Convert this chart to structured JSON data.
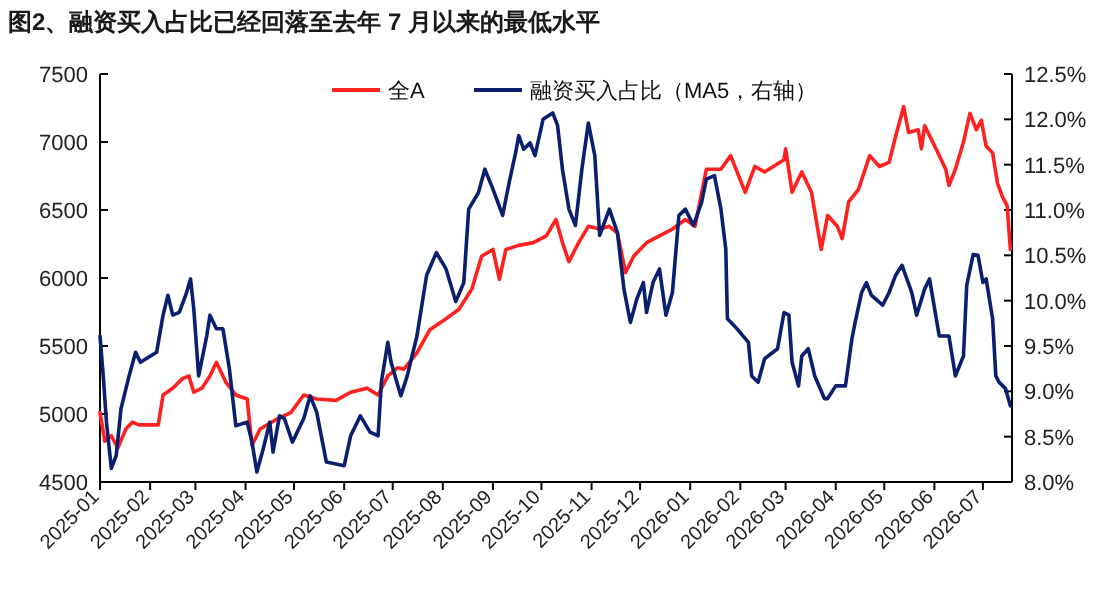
{
  "chart_data": {
    "type": "line",
    "title": "图2、融资买入占比已经回落至去年 7 月以来的最低水平",
    "xlim": [
      "2025-01-01",
      "2026-07-19"
    ],
    "xticks": [
      "2025-01",
      "2025-02",
      "2025-03",
      "2025-04",
      "2025-05",
      "2025-06",
      "2025-07",
      "2025-08",
      "2025-09",
      "2025-10",
      "2025-11",
      "2025-12",
      "2026-01",
      "2026-02",
      "2026-03",
      "2026-04",
      "2026-05",
      "2026-06",
      "2026-07"
    ],
    "ylim": [
      4500,
      7500
    ],
    "yticks": [
      4500,
      5000,
      5500,
      6000,
      6500,
      7000,
      7500
    ],
    "y2lim": [
      8.0,
      12.5
    ],
    "y2ticks": [
      {
        "value": 8.0,
        "label": "8.0%"
      },
      {
        "value": 8.5,
        "label": "8.5%"
      },
      {
        "value": 9.0,
        "label": "9.0%"
      },
      {
        "value": 9.5,
        "label": "9.5%"
      },
      {
        "value": 10.0,
        "label": "10.0%"
      },
      {
        "value": 10.5,
        "label": "10.5%"
      },
      {
        "value": 11.0,
        "label": "11.0%"
      },
      {
        "value": 11.5,
        "label": "11.5%"
      },
      {
        "value": 12.0,
        "label": "12.0%"
      },
      {
        "value": 12.5,
        "label": "12.5%"
      }
    ],
    "grid": false,
    "legend": "top",
    "marker": "none",
    "line_style": "solid",
    "series": [
      {
        "name": "全A",
        "color": "#ff2020",
        "x": [
          "2025-01-01",
          "2025-01-04",
          "2025-01-08",
          "2025-01-12",
          "2025-01-17",
          "2025-01-21",
          "2025-01-25",
          "2025-02-01",
          "2025-02-06",
          "2025-02-09",
          "2025-02-15",
          "2025-02-21",
          "2025-02-25",
          "2025-02-28",
          "2025-03-05",
          "2025-03-10",
          "2025-03-14",
          "2025-03-20",
          "2025-03-26",
          "2025-04-02",
          "2025-04-05",
          "2025-04-10",
          "2025-04-20",
          "2025-04-29",
          "2025-05-07",
          "2025-05-15",
          "2025-05-27",
          "2025-06-05",
          "2025-06-15",
          "2025-06-22",
          "2025-06-28",
          "2025-07-04",
          "2025-07-08",
          "2025-07-16",
          "2025-07-24",
          "2025-08-03",
          "2025-08-11",
          "2025-08-19",
          "2025-08-25",
          "2025-09-01",
          "2025-09-05",
          "2025-09-09",
          "2025-09-17",
          "2025-09-26",
          "2025-10-04",
          "2025-10-10",
          "2025-10-14",
          "2025-10-18",
          "2025-10-24",
          "2025-10-30",
          "2025-11-06",
          "2025-11-12",
          "2025-11-17",
          "2025-11-22",
          "2025-11-27",
          "2025-12-05",
          "2025-12-13",
          "2025-12-21",
          "2025-12-29",
          "2026-01-04",
          "2026-01-11",
          "2026-01-20",
          "2026-01-26",
          "2026-02-04",
          "2026-02-10",
          "2026-02-16",
          "2026-02-28",
          "2026-03-01",
          "2026-03-05",
          "2026-03-11",
          "2026-03-17",
          "2026-03-23",
          "2026-03-27",
          "2026-04-02",
          "2026-04-05",
          "2026-04-09",
          "2026-04-15",
          "2026-04-22",
          "2026-04-28",
          "2026-05-04",
          "2026-05-08",
          "2026-05-13",
          "2026-05-16",
          "2026-05-22",
          "2026-05-24",
          "2026-05-26",
          "2026-06-02",
          "2026-06-08",
          "2026-06-10",
          "2026-06-14",
          "2026-06-19",
          "2026-06-23",
          "2026-06-27",
          "2026-06-30",
          "2026-07-03",
          "2026-07-07",
          "2026-07-10",
          "2026-07-13",
          "2026-07-16",
          "2026-07-18"
        ],
        "values": [
          5010,
          4800,
          4840,
          4750,
          4890,
          4940,
          4920,
          4920,
          4920,
          5140,
          5190,
          5260,
          5280,
          5160,
          5190,
          5280,
          5380,
          5230,
          5140,
          5110,
          4770,
          4890,
          4960,
          5010,
          5140,
          5110,
          5100,
          5160,
          5190,
          5140,
          5280,
          5340,
          5330,
          5450,
          5620,
          5700,
          5770,
          5920,
          6160,
          6210,
          5990,
          6210,
          6240,
          6260,
          6310,
          6430,
          6260,
          6120,
          6260,
          6380,
          6360,
          6380,
          6330,
          6040,
          6160,
          6260,
          6310,
          6360,
          6430,
          6380,
          6800,
          6800,
          6900,
          6630,
          6820,
          6780,
          6870,
          6950,
          6630,
          6780,
          6630,
          6210,
          6460,
          6380,
          6290,
          6560,
          6650,
          6900,
          6820,
          6850,
          7040,
          7260,
          7070,
          7090,
          6950,
          7120,
          6950,
          6800,
          6680,
          6800,
          7000,
          7210,
          7090,
          7160,
          6970,
          6920,
          6700,
          6600,
          6530,
          6210
        ]
      },
      {
        "name": "融资买入占比（MA5，右轴）",
        "color": "#0a1f6e",
        "axis": "y2",
        "x": [
          "2025-01-01",
          "2025-01-03",
          "2025-01-05",
          "2025-01-08",
          "2025-01-11",
          "2025-01-14",
          "2025-01-19",
          "2025-01-23",
          "2025-01-26",
          "2025-02-05",
          "2025-02-09",
          "2025-02-12",
          "2025-02-15",
          "2025-02-19",
          "2025-02-23",
          "2025-02-26",
          "2025-02-28",
          "2025-03-03",
          "2025-03-08",
          "2025-03-10",
          "2025-03-14",
          "2025-03-18",
          "2025-03-22",
          "2025-03-26",
          "2025-04-02",
          "2025-04-05",
          "2025-04-08",
          "2025-04-12",
          "2025-04-16",
          "2025-04-18",
          "2025-04-22",
          "2025-04-25",
          "2025-04-30",
          "2025-05-07",
          "2025-05-11",
          "2025-05-15",
          "2025-05-21",
          "2025-06-01",
          "2025-06-05",
          "2025-06-11",
          "2025-06-17",
          "2025-06-22",
          "2025-06-24",
          "2025-06-28",
          "2025-06-30",
          "2025-07-06",
          "2025-07-10",
          "2025-07-16",
          "2025-07-22",
          "2025-07-28",
          "2025-08-03",
          "2025-08-09",
          "2025-08-14",
          "2025-08-17",
          "2025-08-23",
          "2025-08-27",
          "2025-09-01",
          "2025-09-07",
          "2025-09-11",
          "2025-09-15",
          "2025-09-17",
          "2025-09-20",
          "2025-09-24",
          "2025-09-27",
          "2025-10-02",
          "2025-10-08",
          "2025-10-11",
          "2025-10-14",
          "2025-10-18",
          "2025-10-22",
          "2025-10-26",
          "2025-10-30",
          "2025-11-03",
          "2025-11-06",
          "2025-11-12",
          "2025-11-17",
          "2025-11-21",
          "2025-11-25",
          "2025-11-29",
          "2025-12-03",
          "2025-12-05",
          "2025-12-09",
          "2025-12-13",
          "2025-12-17",
          "2025-12-21",
          "2025-12-25",
          "2025-12-29",
          "2026-01-03",
          "2026-01-08",
          "2026-01-11",
          "2026-01-16",
          "2026-01-20",
          "2026-01-23",
          "2026-01-24",
          "2026-01-30",
          "2026-02-06",
          "2026-02-08",
          "2026-02-12",
          "2026-02-16",
          "2026-02-24",
          "2026-02-28",
          "2026-03-03",
          "2026-03-05",
          "2026-03-09",
          "2026-03-11",
          "2026-03-15",
          "2026-03-19",
          "2026-03-25",
          "2026-03-27",
          "2026-04-01",
          "2026-04-07",
          "2026-04-11",
          "2026-04-13",
          "2026-04-17",
          "2026-04-20",
          "2026-04-23",
          "2026-04-30",
          "2026-05-04",
          "2026-05-08",
          "2026-05-12",
          "2026-05-18",
          "2026-05-21",
          "2026-05-26",
          "2026-05-29",
          "2026-06-04",
          "2026-06-10",
          "2026-06-14",
          "2026-06-19",
          "2026-06-21",
          "2026-06-25",
          "2026-06-28",
          "2026-07-01",
          "2026-07-03",
          "2026-07-07",
          "2026-07-09",
          "2026-07-11",
          "2026-07-15",
          "2026-07-18"
        ],
        "values": [
          9.61,
          9.17,
          8.66,
          8.15,
          8.29,
          8.81,
          9.17,
          9.43,
          9.32,
          9.43,
          9.84,
          10.06,
          9.84,
          9.87,
          10.06,
          10.24,
          9.91,
          9.17,
          9.61,
          9.84,
          9.69,
          9.69,
          9.25,
          8.62,
          8.66,
          8.44,
          8.11,
          8.37,
          8.66,
          8.33,
          8.73,
          8.7,
          8.44,
          8.7,
          8.95,
          8.77,
          8.22,
          8.18,
          8.51,
          8.73,
          8.55,
          8.51,
          9.1,
          9.54,
          9.32,
          8.95,
          9.17,
          9.61,
          10.28,
          10.53,
          10.35,
          9.99,
          10.2,
          11.01,
          11.19,
          11.45,
          11.23,
          10.94,
          11.3,
          11.63,
          11.82,
          11.67,
          11.74,
          11.6,
          12.0,
          12.07,
          11.93,
          11.45,
          11.01,
          10.83,
          11.45,
          11.96,
          11.6,
          10.72,
          11.01,
          10.75,
          10.13,
          9.76,
          10.02,
          10.2,
          9.87,
          10.2,
          10.35,
          9.84,
          10.09,
          10.94,
          11.01,
          10.83,
          11.08,
          11.34,
          11.38,
          11.01,
          10.57,
          9.8,
          9.69,
          9.54,
          9.17,
          9.1,
          9.36,
          9.47,
          9.87,
          9.84,
          9.32,
          9.06,
          9.39,
          9.47,
          9.17,
          8.92,
          8.92,
          9.06,
          9.06,
          9.58,
          9.76,
          10.09,
          10.2,
          10.06,
          9.95,
          10.09,
          10.28,
          10.39,
          10.09,
          9.84,
          10.13,
          10.24,
          9.61,
          9.61,
          9.17,
          9.39,
          10.17,
          10.51,
          10.5,
          10.2,
          10.24,
          9.8,
          9.17,
          9.1,
          9.03,
          8.84
        ]
      }
    ]
  }
}
